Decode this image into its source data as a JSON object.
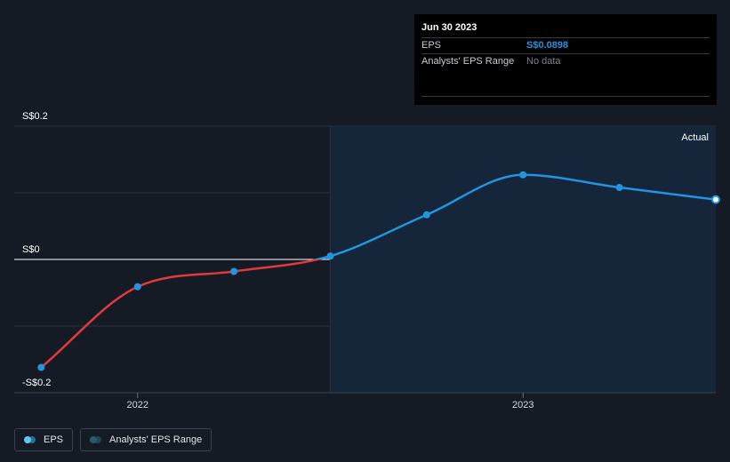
{
  "tooltip": {
    "date": "Jun 30 2023",
    "rows": [
      {
        "label": "EPS",
        "value": "S$0.0898"
      },
      {
        "label": "Analysts' EPS Range",
        "value": "No data"
      }
    ]
  },
  "legend": {
    "items": [
      {
        "label": "EPS"
      },
      {
        "label": "Analysts' EPS Range"
      }
    ]
  },
  "colors": {
    "background": "#151b24",
    "forecast_region": "#15263a",
    "eps_positive": "#2394df",
    "eps_negative": "#e0393e",
    "gridline": "#2b323c",
    "zero_line": "#ffffff",
    "eps_legend_dot": "#5ec8f4",
    "range_legend_dot": "#2a5b6b"
  },
  "chart_data": {
    "type": "line",
    "title": "",
    "xlabel": "",
    "ylabel": "",
    "ylim": [
      -0.2,
      0.2
    ],
    "y_tick_labels": [
      "S$0.2",
      "S$0",
      "-S$0.2"
    ],
    "x_tick_labels": [
      "2022",
      "2023"
    ],
    "x_ticks": [
      2022.0,
      2023.0
    ],
    "xlim": [
      2021.68,
      2023.5
    ],
    "region_label": "Actual",
    "region_start": 2022.5,
    "series": [
      {
        "name": "EPS",
        "x": [
          2021.75,
          2022.0,
          2022.25,
          2022.5,
          2022.75,
          2023.0,
          2023.25,
          2023.5
        ],
        "values": [
          -0.162,
          -0.041,
          -0.018,
          0.005,
          0.067,
          0.127,
          0.108,
          0.0898
        ]
      }
    ]
  }
}
